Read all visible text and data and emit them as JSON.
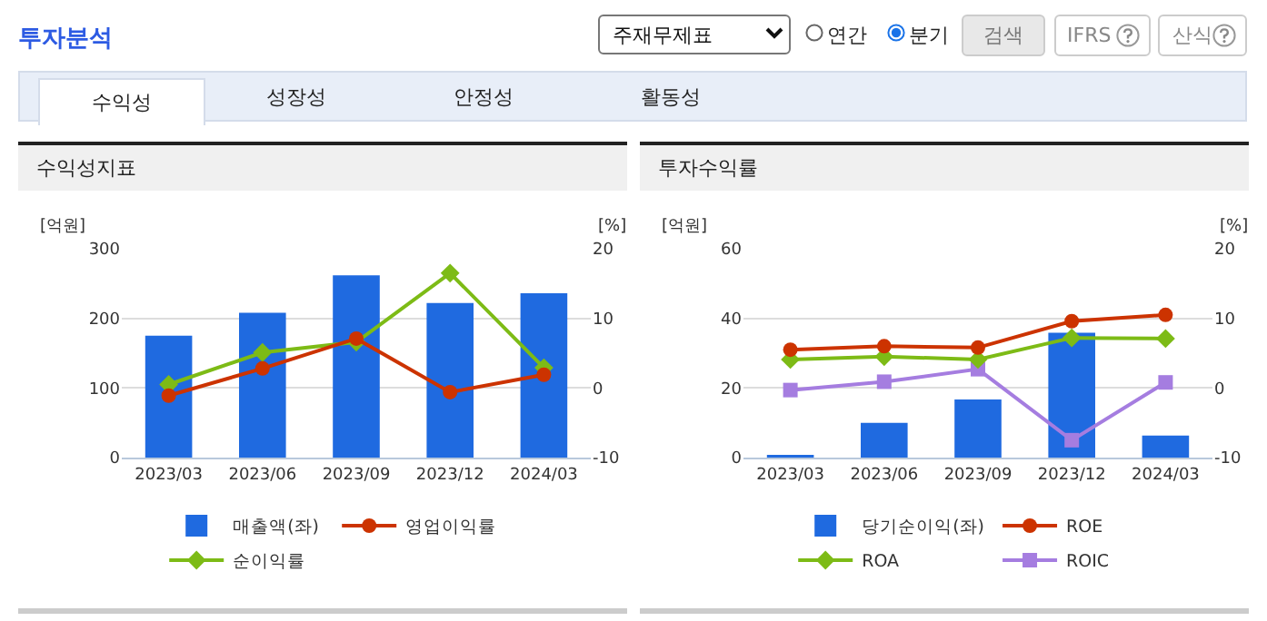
{
  "chart_data": [
    {
      "type": "other",
      "title": "투자분석",
      "annotations": [
        "주재무제표",
        "연간",
        "분기",
        "검색",
        "IFRS",
        "산식",
        "수익성",
        "성장성",
        "안정성",
        "활동성"
      ]
    },
    {
      "type": "bar",
      "title": "수익성지표",
      "categories": [
        "2023/03",
        "2023/06",
        "2023/09",
        "2023/12",
        "2024/03"
      ],
      "ylabel": "[억원]",
      "y2label": "[%]",
      "ylim": [
        0,
        300
      ],
      "yticks": [
        0,
        100,
        200,
        300
      ],
      "y2lim": [
        -10,
        20
      ],
      "y2ticks": [
        -10,
        0,
        10,
        20
      ],
      "grid": "y",
      "legend": "bottom",
      "series": [
        {
          "name": "매출액(좌)",
          "type": "bar",
          "color": "#1f6ae0",
          "values": [
            175,
            208,
            262,
            222,
            236
          ]
        },
        {
          "name": "영업이익률",
          "type": "line",
          "axis": "y2",
          "marker": "circle",
          "color": "#cc3300",
          "values": [
            -1.1,
            2.8,
            7.1,
            -0.6,
            1.9
          ]
        },
        {
          "name": "순이익률",
          "type": "line",
          "axis": "y2",
          "marker": "diamond",
          "color": "#7dbb16",
          "values": [
            0.5,
            5.1,
            6.6,
            16.5,
            2.9
          ]
        }
      ]
    },
    {
      "type": "bar",
      "title": "투자수익률",
      "categories": [
        "2023/03",
        "2023/06",
        "2023/09",
        "2023/12",
        "2024/03"
      ],
      "ylabel": "[억원]",
      "y2label": "[%]",
      "ylim": [
        0,
        60
      ],
      "yticks": [
        0,
        20,
        40,
        60
      ],
      "y2lim": [
        -10,
        20
      ],
      "y2ticks": [
        -10,
        0,
        10,
        20
      ],
      "grid": "y",
      "legend": "bottom",
      "series": [
        {
          "name": "당기순이익(좌)",
          "type": "bar",
          "color": "#1f6ae0",
          "values": [
            0.8,
            10,
            16.7,
            35.9,
            6.3
          ]
        },
        {
          "name": "ROE",
          "type": "line",
          "axis": "y2",
          "marker": "circle",
          "color": "#cc3300",
          "values": [
            5.5,
            6.0,
            5.8,
            9.6,
            10.5
          ]
        },
        {
          "name": "ROA",
          "type": "line",
          "axis": "y2",
          "marker": "diamond",
          "color": "#7dbb16",
          "values": [
            4.1,
            4.5,
            4.1,
            7.2,
            7.1
          ]
        },
        {
          "name": "ROIC",
          "type": "line",
          "axis": "y2",
          "marker": "square",
          "color": "#a57de0",
          "values": [
            -0.3,
            0.9,
            2.7,
            -7.5,
            0.8
          ]
        }
      ]
    }
  ]
}
